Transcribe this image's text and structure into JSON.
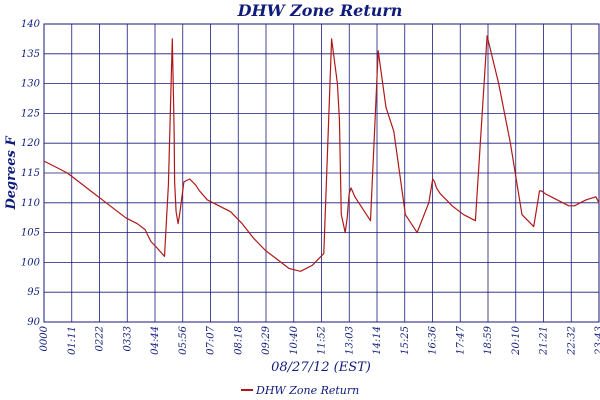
{
  "chart_data": {
    "type": "line",
    "title": "DHW Zone Return",
    "xlabel": "08/27/12 (EST)",
    "ylabel": "Degrees F",
    "ylim": [
      90,
      140
    ],
    "yticks": [
      90,
      95,
      100,
      105,
      110,
      115,
      120,
      125,
      130,
      135,
      140
    ],
    "xticks": [
      "0000",
      "01:11",
      "0222",
      "0333",
      "04:44",
      "05:56",
      "07:07",
      "08:18",
      "09:29",
      "10:40",
      "11:52",
      "13:03",
      "14:14",
      "15:25",
      "16:36",
      "17:47",
      "18:59",
      "20:10",
      "21:21",
      "22:32",
      "23:43"
    ],
    "grid": true,
    "legend": "bottom-center",
    "colors": {
      "line": "#b01818",
      "grid": "#1a1a7a",
      "text": "#0f1c7a"
    },
    "series": [
      {
        "name": "DHW Zone Return",
        "x_minutes": [
          0,
          30,
          60,
          90,
          120,
          150,
          180,
          210,
          240,
          260,
          275,
          290,
          310,
          320,
          330,
          334,
          335,
          336,
          340,
          345,
          350,
          360,
          375,
          390,
          400,
          420,
          450,
          480,
          510,
          540,
          570,
          600,
          630,
          660,
          690,
          720,
          740,
          755,
          760,
          765,
          770,
          775,
          780,
          785,
          790,
          800,
          810,
          820,
          840,
          860,
          880,
          900,
          930,
          960,
          990,
          1000,
          1005,
          1010,
          1020,
          1035,
          1050,
          1060,
          1080,
          1110,
          1140,
          1170,
          1200,
          1230,
          1260,
          1270,
          1275,
          1280,
          1290,
          1305,
          1320,
          1335,
          1350,
          1365,
          1380,
          1395,
          1420,
          1428
        ],
        "values": [
          117.0,
          116.0,
          115.0,
          113.5,
          112.0,
          110.5,
          109.0,
          107.5,
          106.5,
          105.5,
          103.5,
          102.5,
          101.0,
          113.0,
          137.5,
          125.0,
          121.0,
          113.5,
          108.5,
          106.5,
          108.5,
          113.5,
          114.0,
          113.0,
          112.0,
          110.5,
          109.5,
          108.5,
          106.5,
          104.0,
          102.0,
          100.5,
          99.0,
          98.5,
          99.5,
          101.5,
          137.5,
          130.0,
          124.0,
          108.0,
          106.5,
          105.0,
          107.5,
          111.5,
          112.5,
          111.0,
          110.0,
          109.0,
          107.0,
          135.5,
          126.0,
          122.0,
          108.0,
          105.0,
          110.0,
          114.0,
          113.5,
          112.5,
          111.5,
          110.5,
          109.5,
          109.0,
          108.0,
          107.0,
          138.0,
          130.0,
          120.0,
          108.0,
          106.0,
          110.0,
          112.0,
          112.0,
          111.5,
          111.0,
          110.5,
          110.0,
          109.5,
          109.5,
          110.0,
          110.5,
          111.0,
          110.0
        ]
      }
    ]
  }
}
